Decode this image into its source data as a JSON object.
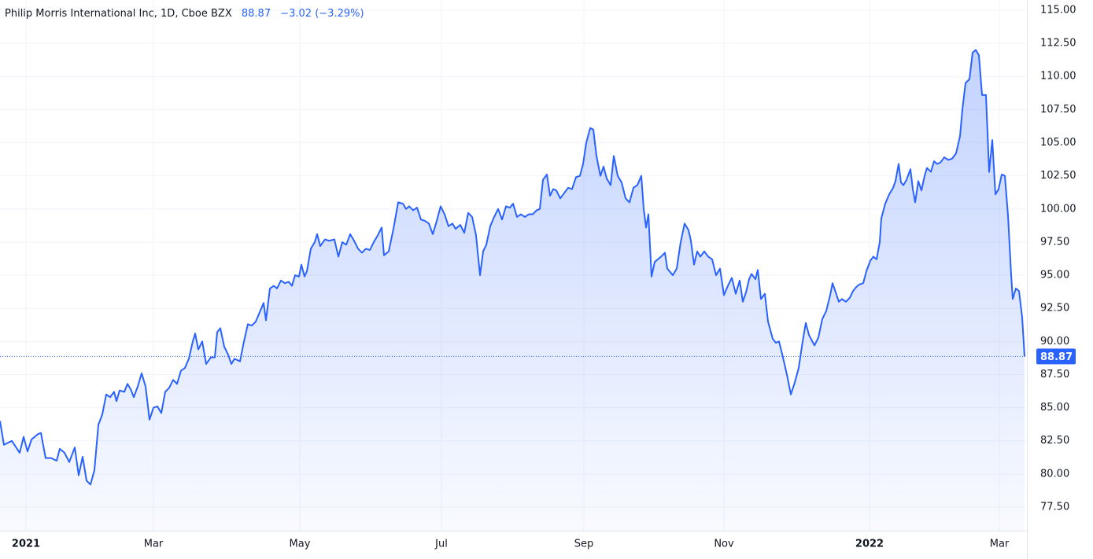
{
  "chart_data": {
    "type": "area",
    "title": "Philip Morris International Inc, 1D, Cboe BZX",
    "change_label": "−3.02 (−3.29%)",
    "xlim": [
      0,
      1305
    ],
    "ylim": [
      75.72,
      115.77
    ],
    "grid": true,
    "xticks": [
      {
        "value": 33,
        "label": "2021"
      },
      {
        "value": 195,
        "label": "Mar"
      },
      {
        "value": 381,
        "label": "May"
      },
      {
        "value": 561,
        "label": "Jul"
      },
      {
        "value": 742,
        "label": "Sep"
      },
      {
        "value": 920,
        "label": "Nov"
      },
      {
        "value": 1105,
        "label": "2022"
      },
      {
        "value": 1270,
        "label": "Mar"
      }
    ],
    "yticks": [
      {
        "value": 77.5,
        "label": "77.50"
      },
      {
        "value": 80,
        "label": "80.00"
      },
      {
        "value": 82.5,
        "label": "82.50"
      },
      {
        "value": 85,
        "label": "85.00"
      },
      {
        "value": 87.5,
        "label": "87.50"
      },
      {
        "value": 90,
        "label": "90.00"
      },
      {
        "value": 92.5,
        "label": "92.50"
      },
      {
        "value": 95,
        "label": "95.00"
      },
      {
        "value": 97.5,
        "label": "97.50"
      },
      {
        "value": 100,
        "label": "100.00"
      },
      {
        "value": 102.5,
        "label": "102.50"
      },
      {
        "value": 105,
        "label": "105.00"
      },
      {
        "value": 107.5,
        "label": "107.50"
      },
      {
        "value": 110,
        "label": "110.00"
      },
      {
        "value": 112.5,
        "label": "112.50"
      },
      {
        "value": 115,
        "label": "115.00"
      }
    ],
    "x": [
      0,
      5,
      15,
      25,
      30,
      35,
      40,
      48,
      52,
      58,
      65,
      72,
      76,
      82,
      88,
      95,
      100,
      105,
      110,
      115,
      120,
      125,
      130,
      135,
      140,
      145,
      148,
      152,
      158,
      162,
      166,
      170,
      175,
      180,
      185,
      190,
      195,
      200,
      205,
      210,
      215,
      220,
      225,
      230,
      235,
      240,
      245,
      248,
      252,
      257,
      262,
      268,
      273,
      276,
      280,
      285,
      290,
      294,
      298,
      305,
      310,
      315,
      320,
      325,
      330,
      335,
      338,
      343,
      348,
      352,
      357,
      362,
      367,
      371,
      375,
      380,
      383,
      387,
      390,
      395,
      400,
      403,
      407,
      413,
      418,
      425,
      430,
      435,
      440,
      445,
      450,
      455,
      460,
      465,
      470,
      475,
      480,
      485,
      488,
      494,
      500,
      506,
      512,
      516,
      520,
      525,
      530,
      535,
      540,
      545,
      550,
      555,
      560,
      565,
      570,
      575,
      579,
      585,
      590,
      595,
      600,
      605,
      610,
      614,
      618,
      623,
      628,
      633,
      638,
      643,
      648,
      652,
      657,
      662,
      667,
      672,
      677,
      682,
      686,
      690,
      695,
      699,
      703,
      707,
      712,
      717,
      722,
      727,
      732,
      737,
      741,
      745,
      750,
      754,
      758,
      763,
      767,
      771,
      776,
      780,
      785,
      790,
      795,
      800,
      805,
      810,
      815,
      818,
      821,
      824,
      828,
      832,
      840,
      845,
      848,
      855,
      860,
      865,
      870,
      875,
      878,
      882,
      886,
      890,
      895,
      900,
      905,
      910,
      915,
      920,
      925,
      930,
      935,
      940,
      944,
      948,
      952,
      955,
      960,
      963,
      967,
      972,
      976,
      982,
      986,
      990,
      995,
      1000,
      1005,
      1010,
      1015,
      1020,
      1024,
      1028,
      1035,
      1040,
      1045,
      1050,
      1055,
      1058,
      1062,
      1066,
      1070,
      1075,
      1080,
      1084,
      1088,
      1092,
      1097,
      1101,
      1106,
      1110,
      1114,
      1118,
      1120,
      1125,
      1130,
      1135,
      1138,
      1142,
      1145,
      1148,
      1152,
      1157,
      1160,
      1163,
      1167,
      1171,
      1175,
      1178,
      1183,
      1187,
      1191,
      1195,
      1200,
      1205,
      1210,
      1215,
      1220,
      1223,
      1227,
      1232,
      1236,
      1240,
      1244,
      1248,
      1253,
      1257,
      1261,
      1265,
      1269,
      1273,
      1277,
      1281,
      1285,
      1287,
      1291,
      1295,
      1299,
      1302
    ],
    "series": [
      {
        "color": "#2962ff",
        "values": [
          84.0,
          82.2,
          82.5,
          81.6,
          82.8,
          81.7,
          82.6,
          83.0,
          83.1,
          81.2,
          81.2,
          81.0,
          81.9,
          81.6,
          80.9,
          82.0,
          79.9,
          81.3,
          79.5,
          79.2,
          80.3,
          83.7,
          84.5,
          86.0,
          85.8,
          86.2,
          85.5,
          86.3,
          86.2,
          86.8,
          86.4,
          85.8,
          86.6,
          87.6,
          86.6,
          84.1,
          85.0,
          85.1,
          84.6,
          86.2,
          86.5,
          87.1,
          86.8,
          87.8,
          88.0,
          88.7,
          90.0,
          90.6,
          89.4,
          90.0,
          88.3,
          88.8,
          88.8,
          90.7,
          91.0,
          89.6,
          89.0,
          88.3,
          88.7,
          88.5,
          90.0,
          91.3,
          91.2,
          91.5,
          92.2,
          92.9,
          91.6,
          94.0,
          94.2,
          94.0,
          94.6,
          94.4,
          94.5,
          94.2,
          95.0,
          94.9,
          95.8,
          94.9,
          95.3,
          97.0,
          97.5,
          98.1,
          97.2,
          97.7,
          97.6,
          97.7,
          96.4,
          97.5,
          97.3,
          98.1,
          97.6,
          97.0,
          96.7,
          97.0,
          96.9,
          97.5,
          98.0,
          98.6,
          96.5,
          96.8,
          98.5,
          100.5,
          100.4,
          100.0,
          100.2,
          99.9,
          100.1,
          99.2,
          99.1,
          98.9,
          98.1,
          99.1,
          100.2,
          99.6,
          98.7,
          98.9,
          98.5,
          98.8,
          98.2,
          99.7,
          99.4,
          98.0,
          95.0,
          96.8,
          97.3,
          98.7,
          99.4,
          100.0,
          99.2,
          100.2,
          100.1,
          100.4,
          99.4,
          99.6,
          99.4,
          99.6,
          99.6,
          99.9,
          100.0,
          102.2,
          102.6,
          101.0,
          101.5,
          101.4,
          100.8,
          101.2,
          101.6,
          101.5,
          102.4,
          102.5,
          103.4,
          105.0,
          106.1,
          106.0,
          104.0,
          102.5,
          103.2,
          102.3,
          101.8,
          104.0,
          102.5,
          102.0,
          100.8,
          100.5,
          101.6,
          101.8,
          102.5,
          100.0,
          98.6,
          99.6,
          94.9,
          96.0,
          96.4,
          96.7,
          95.5,
          95.0,
          95.5,
          97.5,
          98.9,
          98.4,
          97.6,
          95.8,
          96.8,
          96.4,
          96.8,
          96.4,
          96.2,
          95.0,
          95.5,
          93.5,
          94.2,
          94.8,
          93.6,
          94.6,
          93.0,
          93.7,
          94.7,
          95.1,
          94.7,
          95.4,
          93.2,
          93.6,
          91.5,
          90.2,
          89.9,
          90.0,
          88.8,
          87.5,
          86.0,
          86.9,
          88.0,
          90.0,
          91.4,
          90.5,
          89.7,
          90.3,
          91.7,
          92.3,
          93.5,
          94.4,
          93.7,
          93.0,
          93.2,
          93.0,
          93.3,
          93.8,
          94.1,
          94.3,
          94.4,
          95.3,
          96.1,
          96.4,
          96.2,
          97.5,
          99.3,
          100.4,
          101.1,
          101.6,
          102.1,
          103.4,
          102.0,
          101.8,
          102.2,
          103.0,
          101.5,
          100.5,
          102.1,
          101.4,
          102.5,
          103.1,
          102.8,
          103.6,
          103.4,
          103.5,
          103.9,
          103.7,
          103.8,
          104.2,
          105.5,
          107.5,
          109.5,
          109.8,
          111.8,
          112.0,
          111.6,
          108.6,
          108.6,
          102.8,
          105.2,
          101.1,
          101.5,
          102.6,
          102.5,
          99.5,
          95.0,
          93.2,
          94.0,
          93.8,
          91.8,
          88.87
        ]
      }
    ]
  }
}
